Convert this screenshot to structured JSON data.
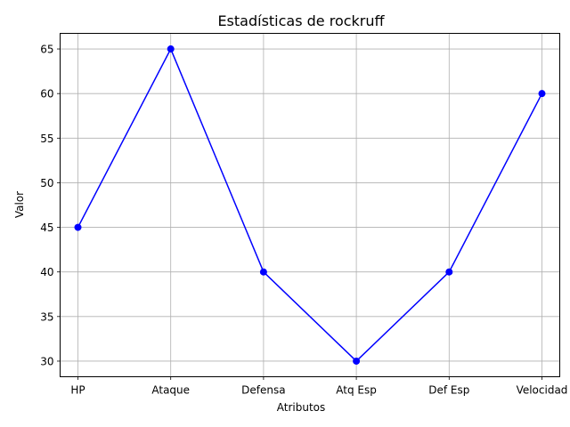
{
  "chart_data": {
    "type": "line",
    "title": "Estadísticas de rockruff",
    "xlabel": "Atributos",
    "ylabel": "Valor",
    "categories": [
      "HP",
      "Ataque",
      "Defensa",
      "Atq Esp",
      "Def Esp",
      "Velocidad"
    ],
    "series": [
      {
        "values": [
          45,
          65,
          40,
          30,
          40,
          60
        ],
        "color": "#0000ff",
        "marker": "circle"
      }
    ],
    "ylim": [
      28.25,
      66.75
    ],
    "yticks": [
      30,
      35,
      40,
      45,
      50,
      55,
      60,
      65
    ],
    "grid": true
  }
}
